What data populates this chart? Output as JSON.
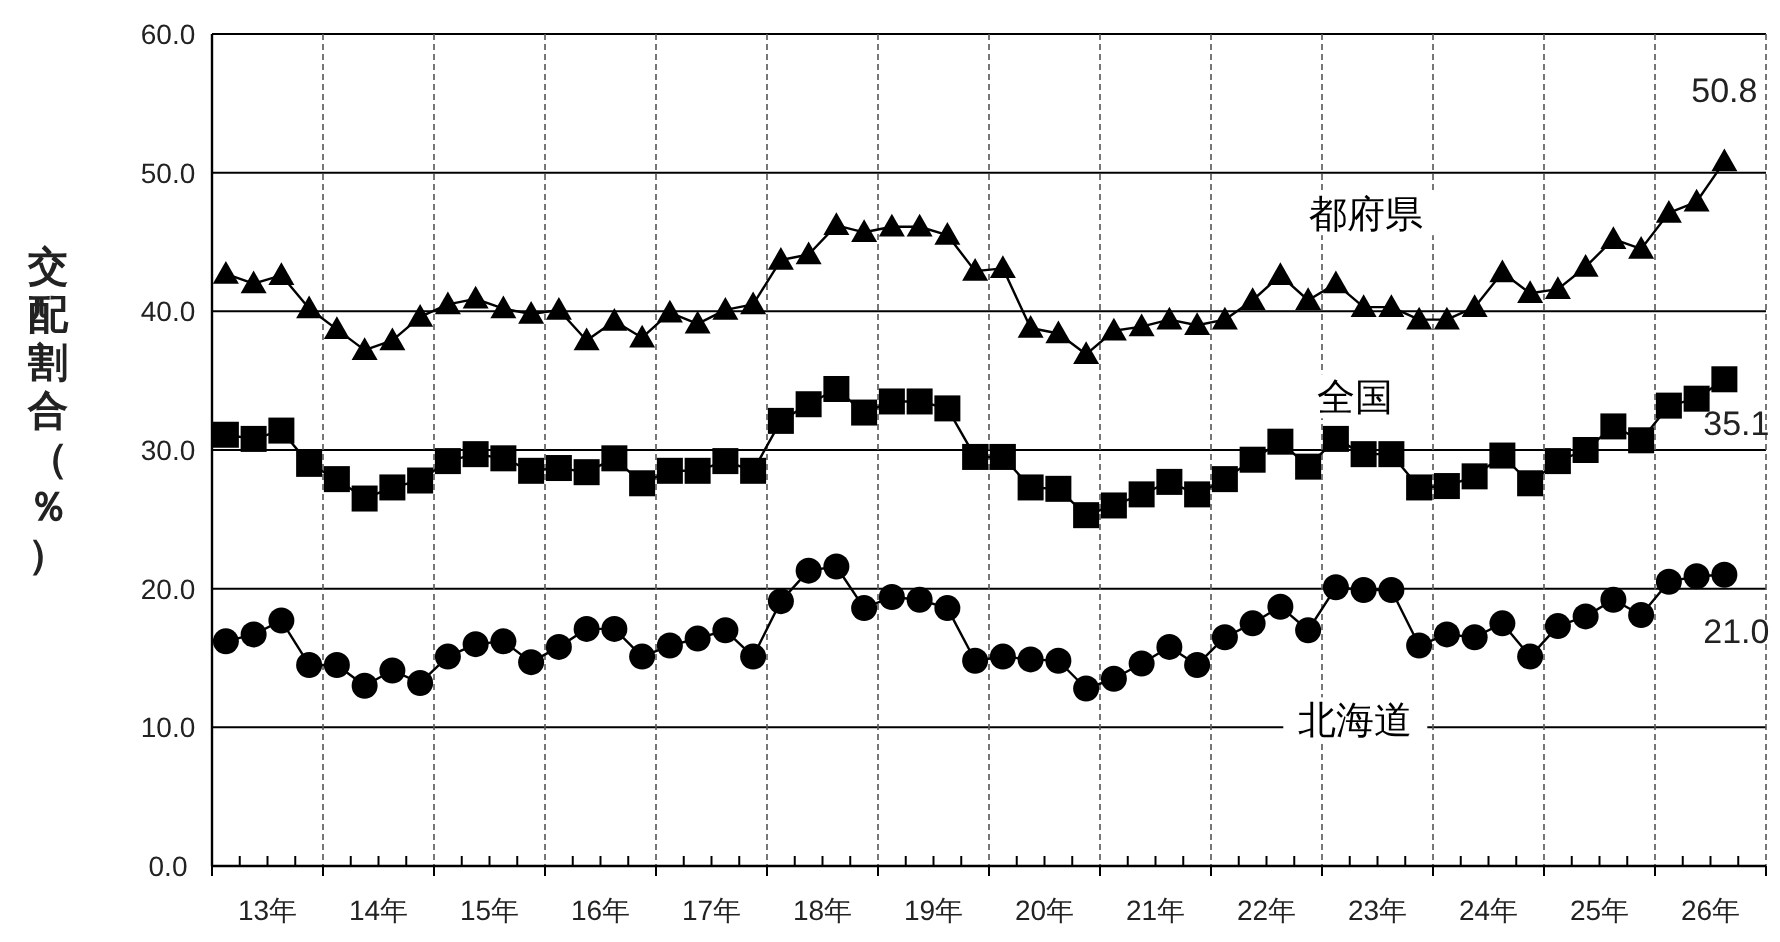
{
  "chart_data": {
    "type": "line",
    "ylabel": "交配割合（％）",
    "legend": false,
    "grid": true,
    "line_style": "solid",
    "x": [
      13.125,
      13.375,
      13.625,
      13.875,
      14.125,
      14.375,
      14.625,
      14.875,
      15.125,
      15.375,
      15.625,
      15.875,
      16.125,
      16.375,
      16.625,
      16.875,
      17.125,
      17.375,
      17.625,
      17.875,
      18.125,
      18.375,
      18.625,
      18.875,
      19.125,
      19.375,
      19.625,
      19.875,
      20.125,
      20.375,
      20.625,
      20.875,
      21.125,
      21.375,
      21.625,
      21.875,
      22.125,
      22.375,
      22.625,
      22.875,
      23.125,
      23.375,
      23.625,
      23.875,
      24.125,
      24.375,
      24.625,
      24.875,
      25.125,
      25.375,
      25.625,
      25.875,
      26.125,
      26.375,
      26.625
    ],
    "xlim": [
      13,
      27
    ],
    "xticks": [
      {
        "value": 13,
        "label": null
      },
      {
        "value": 13.25,
        "label": null
      },
      {
        "value": 13.5,
        "label": "13年"
      },
      {
        "value": 13.75,
        "label": null
      },
      {
        "value": 14,
        "label": null
      },
      {
        "value": 14.25,
        "label": null
      },
      {
        "value": 14.5,
        "label": "14年"
      },
      {
        "value": 14.75,
        "label": null
      },
      {
        "value": 15,
        "label": null
      },
      {
        "value": 15.25,
        "label": null
      },
      {
        "value": 15.5,
        "label": "15年"
      },
      {
        "value": 15.75,
        "label": null
      },
      {
        "value": 16,
        "label": null
      },
      {
        "value": 16.25,
        "label": null
      },
      {
        "value": 16.5,
        "label": "16年"
      },
      {
        "value": 16.75,
        "label": null
      },
      {
        "value": 17,
        "label": null
      },
      {
        "value": 17.25,
        "label": null
      },
      {
        "value": 17.5,
        "label": "17年"
      },
      {
        "value": 17.75,
        "label": null
      },
      {
        "value": 18,
        "label": null
      },
      {
        "value": 18.25,
        "label": null
      },
      {
        "value": 18.5,
        "label": "18年"
      },
      {
        "value": 18.75,
        "label": null
      },
      {
        "value": 19,
        "label": null
      },
      {
        "value": 19.25,
        "label": null
      },
      {
        "value": 19.5,
        "label": "19年"
      },
      {
        "value": 19.75,
        "label": null
      },
      {
        "value": 20,
        "label": null
      },
      {
        "value": 20.25,
        "label": null
      },
      {
        "value": 20.5,
        "label": "20年"
      },
      {
        "value": 20.75,
        "label": null
      },
      {
        "value": 21,
        "label": null
      },
      {
        "value": 21.25,
        "label": null
      },
      {
        "value": 21.5,
        "label": "21年"
      },
      {
        "value": 21.75,
        "label": null
      },
      {
        "value": 22,
        "label": null
      },
      {
        "value": 22.25,
        "label": null
      },
      {
        "value": 22.5,
        "label": "22年"
      },
      {
        "value": 22.75,
        "label": null
      },
      {
        "value": 23,
        "label": null
      },
      {
        "value": 23.25,
        "label": null
      },
      {
        "value": 23.5,
        "label": "23年"
      },
      {
        "value": 23.75,
        "label": null
      },
      {
        "value": 24,
        "label": null
      },
      {
        "value": 24.25,
        "label": null
      },
      {
        "value": 24.5,
        "label": "24年"
      },
      {
        "value": 24.75,
        "label": null
      },
      {
        "value": 25,
        "label": null
      },
      {
        "value": 25.25,
        "label": null
      },
      {
        "value": 25.5,
        "label": "25年"
      },
      {
        "value": 25.75,
        "label": null
      },
      {
        "value": 26,
        "label": null
      },
      {
        "value": 26.25,
        "label": null
      },
      {
        "value": 26.5,
        "label": "26年"
      },
      {
        "value": 26.75,
        "label": null
      },
      {
        "value": 27,
        "label": null
      }
    ],
    "ylim": [
      0,
      60
    ],
    "yticks": [
      {
        "value": 0,
        "label": "0.0"
      },
      {
        "value": 10,
        "label": "10.0"
      },
      {
        "value": 20,
        "label": "20.0"
      },
      {
        "value": 30,
        "label": "30.0"
      },
      {
        "value": 40,
        "label": "40.0"
      },
      {
        "value": 50,
        "label": "50.0"
      },
      {
        "value": 60,
        "label": "60.0"
      }
    ],
    "series": [
      {
        "name": "都府県",
        "color": "#000000",
        "marker": "triangle",
        "value_labels": [
          null,
          null,
          null,
          null,
          null,
          null,
          null,
          null,
          null,
          null,
          null,
          null,
          null,
          null,
          null,
          null,
          null,
          null,
          null,
          null,
          null,
          null,
          null,
          null,
          null,
          null,
          null,
          null,
          null,
          null,
          null,
          null,
          null,
          null,
          null,
          null,
          null,
          null,
          null,
          null,
          null,
          null,
          null,
          null,
          null,
          null,
          null,
          null,
          null,
          null,
          null,
          null,
          null,
          null,
          "50.8"
        ],
        "values": [
          42.7,
          42.0,
          42.6,
          40.2,
          38.7,
          37.2,
          37.9,
          39.6,
          40.5,
          40.9,
          40.2,
          39.8,
          40.1,
          37.9,
          39.3,
          38.1,
          39.9,
          39.1,
          40.1,
          40.5,
          43.7,
          44.1,
          46.2,
          45.7,
          46.1,
          46.1,
          45.5,
          42.9,
          43.1,
          38.8,
          38.4,
          36.9,
          38.6,
          38.9,
          39.4,
          39.0,
          39.4,
          40.8,
          42.6,
          40.8,
          42.0,
          40.3,
          40.3,
          39.4,
          39.4,
          40.3,
          42.8,
          41.3,
          41.6,
          43.2,
          45.2,
          44.5,
          47.1,
          47.9,
          50.8
        ]
      },
      {
        "name": "全国",
        "color": "#000000",
        "marker": "square",
        "value_labels": [
          null,
          null,
          null,
          null,
          null,
          null,
          null,
          null,
          null,
          null,
          null,
          null,
          null,
          null,
          null,
          null,
          null,
          null,
          null,
          null,
          null,
          null,
          null,
          null,
          null,
          null,
          null,
          null,
          null,
          null,
          null,
          null,
          null,
          null,
          null,
          null,
          null,
          null,
          null,
          null,
          null,
          null,
          null,
          null,
          null,
          null,
          null,
          null,
          null,
          null,
          null,
          null,
          null,
          null,
          "35.1"
        ],
        "values": [
          31.1,
          30.8,
          31.4,
          29.0,
          27.9,
          26.5,
          27.3,
          27.8,
          29.2,
          29.7,
          29.4,
          28.5,
          28.7,
          28.4,
          29.4,
          27.6,
          28.5,
          28.5,
          29.2,
          28.5,
          32.1,
          33.3,
          34.4,
          32.7,
          33.5,
          33.5,
          33.0,
          29.5,
          29.5,
          27.3,
          27.2,
          25.3,
          26.0,
          26.8,
          27.7,
          26.8,
          27.9,
          29.3,
          30.6,
          28.8,
          30.8,
          29.7,
          29.7,
          27.3,
          27.4,
          28.1,
          29.6,
          27.6,
          29.2,
          30.0,
          31.7,
          30.7,
          33.2,
          33.7,
          35.1
        ]
      },
      {
        "name": "北海道",
        "color": "#000000",
        "marker": "circle",
        "value_labels": [
          null,
          null,
          null,
          null,
          null,
          null,
          null,
          null,
          null,
          null,
          null,
          null,
          null,
          null,
          null,
          null,
          null,
          null,
          null,
          null,
          null,
          null,
          null,
          null,
          null,
          null,
          null,
          null,
          null,
          null,
          null,
          null,
          null,
          null,
          null,
          null,
          null,
          null,
          null,
          null,
          null,
          null,
          null,
          null,
          null,
          null,
          null,
          null,
          null,
          null,
          null,
          null,
          null,
          null,
          "21.0"
        ],
        "values": [
          16.2,
          16.7,
          17.7,
          14.5,
          14.5,
          13.0,
          14.1,
          13.2,
          15.1,
          16.0,
          16.2,
          14.7,
          15.8,
          17.1,
          17.1,
          15.1,
          15.9,
          16.4,
          17.0,
          15.1,
          19.1,
          21.3,
          21.6,
          18.6,
          19.4,
          19.2,
          18.6,
          14.8,
          15.1,
          14.9,
          14.8,
          12.8,
          13.5,
          14.6,
          15.8,
          14.5,
          16.5,
          17.5,
          18.7,
          17.0,
          20.1,
          19.9,
          19.9,
          15.9,
          16.7,
          16.5,
          17.5,
          15.1,
          17.3,
          18.0,
          19.2,
          18.1,
          20.5,
          20.9,
          21.0
        ]
      }
    ]
  }
}
